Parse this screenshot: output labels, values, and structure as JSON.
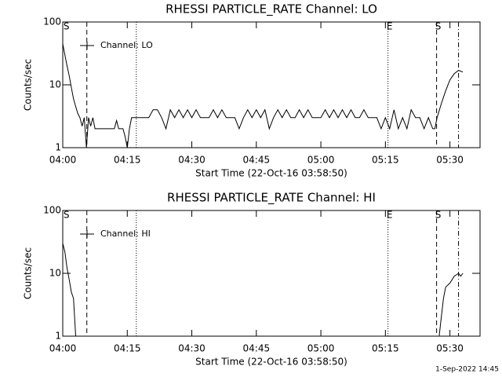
{
  "chart_data": [
    {
      "type": "line",
      "title": "RHESSI PARTICLE_RATE Channel: LO",
      "x_label": "Start Time (22-Oct-16 03:58:50)",
      "y_label": "Counts/sec",
      "xlim": [
        0,
        97
      ],
      "xticks": [
        {
          "value": 0,
          "label": "04:00"
        },
        {
          "value": 15,
          "label": "04:15"
        },
        {
          "value": 30,
          "label": "04:30"
        },
        {
          "value": 45,
          "label": "04:45"
        },
        {
          "value": 60,
          "label": "05:00"
        },
        {
          "value": 75,
          "label": "05:15"
        },
        {
          "value": 90,
          "label": "05:30"
        }
      ],
      "ylim": [
        1,
        100
      ],
      "yticks": [
        1,
        10,
        100
      ],
      "log_y": true,
      "legend": "upper left",
      "vlines": [
        {
          "x": 5.6,
          "style": "dashed"
        },
        {
          "x": 17.1,
          "style": "dotted"
        },
        {
          "x": 75.6,
          "style": "dotted"
        },
        {
          "x": 86.9,
          "style": "dashed"
        },
        {
          "x": 92,
          "style": "dashdot"
        }
      ],
      "annotations": [
        {
          "x": 0.5,
          "text": "S"
        },
        {
          "x": 75.6,
          "text": "E"
        },
        {
          "x": 86.9,
          "text": "S"
        }
      ],
      "series": [
        {
          "name": "Channel: LO",
          "color": "#000000",
          "x": [
            0,
            0.5,
            1,
            1.5,
            2,
            2.5,
            3,
            3.5,
            4,
            4.5,
            5,
            5.5,
            6,
            6.5,
            7,
            7.5,
            8,
            10,
            12,
            12.5,
            13,
            14,
            14.5,
            15,
            15.5,
            16,
            19,
            20,
            21,
            22,
            23,
            24,
            25,
            26,
            27,
            28,
            29,
            30,
            31,
            32,
            33,
            34,
            35,
            36,
            37,
            38,
            39,
            40,
            41,
            42,
            43,
            44,
            45,
            46,
            47,
            48,
            49,
            50,
            51,
            52,
            53,
            54,
            55,
            56,
            57,
            58,
            59,
            60,
            61,
            62,
            63,
            64,
            65,
            66,
            67,
            68,
            69,
            70,
            71,
            72,
            73,
            74,
            75,
            76,
            77,
            78,
            79,
            80,
            81,
            82,
            83,
            84,
            85,
            86,
            86.5,
            87,
            88,
            89,
            90,
            91,
            92,
            93
          ],
          "values": [
            45,
            30,
            20,
            14,
            9,
            6,
            4.5,
            3.5,
            3,
            2.2,
            3,
            1,
            3,
            2.2,
            3,
            2,
            2,
            2,
            2,
            2.7,
            2,
            2,
            1.5,
            1,
            2,
            3,
            3,
            3,
            4,
            4,
            3,
            2,
            4,
            3,
            4,
            3,
            4,
            3,
            4,
            3,
            3,
            3,
            4,
            3,
            4,
            3,
            3,
            3,
            2,
            3,
            4,
            3,
            4,
            3,
            4,
            2,
            3,
            4,
            3,
            4,
            3,
            3,
            4,
            3,
            4,
            3,
            3,
            3,
            4,
            3,
            4,
            3,
            4,
            3,
            4,
            3,
            3,
            4,
            3,
            3,
            3,
            2,
            3,
            2,
            4,
            2,
            3,
            2,
            4,
            3,
            3,
            2,
            3,
            2,
            2,
            3,
            5,
            8,
            12,
            15,
            17,
            16
          ]
        }
      ]
    },
    {
      "type": "line",
      "title": "RHESSI PARTICLE_RATE Channel: HI",
      "x_label": "Start Time (22-Oct-16 03:58:50)",
      "y_label": "Counts/sec",
      "xlim": [
        0,
        97
      ],
      "xticks": [
        {
          "value": 0,
          "label": "04:00"
        },
        {
          "value": 15,
          "label": "04:15"
        },
        {
          "value": 30,
          "label": "04:30"
        },
        {
          "value": 45,
          "label": "04:45"
        },
        {
          "value": 60,
          "label": "05:00"
        },
        {
          "value": 75,
          "label": "05:15"
        },
        {
          "value": 90,
          "label": "05:30"
        }
      ],
      "ylim": [
        1,
        100
      ],
      "yticks": [
        1,
        10,
        100
      ],
      "log_y": true,
      "legend": "upper left",
      "vlines": [
        {
          "x": 5.6,
          "style": "dashed"
        },
        {
          "x": 17.1,
          "style": "dotted"
        },
        {
          "x": 75.6,
          "style": "dotted"
        },
        {
          "x": 86.9,
          "style": "dashed"
        },
        {
          "x": 92,
          "style": "dashdot"
        }
      ],
      "annotations": [
        {
          "x": 0.5,
          "text": "S"
        },
        {
          "x": 75.6,
          "text": "E"
        },
        {
          "x": 86.9,
          "text": "S"
        }
      ],
      "series": [
        {
          "name": "Channel: HI",
          "color": "#000000",
          "x": [
            0,
            0.5,
            1,
            1.5,
            2,
            2.5,
            3,
            3.5,
            87.5,
            88,
            88.5,
            89,
            90,
            91,
            92,
            92.5,
            93
          ],
          "values": [
            30,
            22,
            12,
            8,
            5,
            4,
            1,
            null,
            1,
            2,
            4,
            6,
            7,
            9,
            10,
            9,
            10
          ]
        }
      ]
    }
  ],
  "footer": "1-Sep-2022 14:45"
}
